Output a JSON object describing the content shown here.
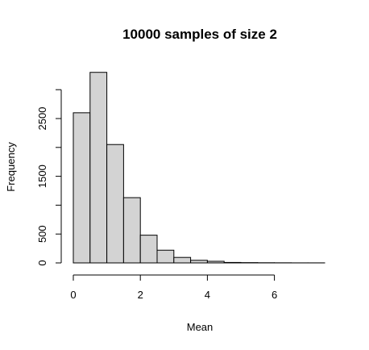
{
  "chart_data": {
    "type": "bar",
    "title": "10000 samples of size 2",
    "xlabel": "Mean",
    "ylabel": "Frequency",
    "bin_edges": [
      0,
      0.5,
      1.0,
      1.5,
      2.0,
      2.5,
      3.0,
      3.5,
      4.0,
      4.5,
      5.0,
      5.5,
      6.0,
      6.5,
      7.0,
      7.5
    ],
    "values": [
      2600,
      3300,
      2050,
      1130,
      480,
      220,
      95,
      45,
      28,
      8,
      5,
      3,
      2,
      1,
      1
    ],
    "xlim": [
      0,
      7.5
    ],
    "ylim": [
      0,
      3300
    ],
    "x_ticks": [
      "0",
      "2",
      "4",
      "6"
    ],
    "y_ticks": [
      "0",
      "500",
      "1500",
      "2500"
    ],
    "grid": false,
    "colors": {
      "bar_fill": "#d3d3d3",
      "bar_stroke": "#000000"
    }
  }
}
